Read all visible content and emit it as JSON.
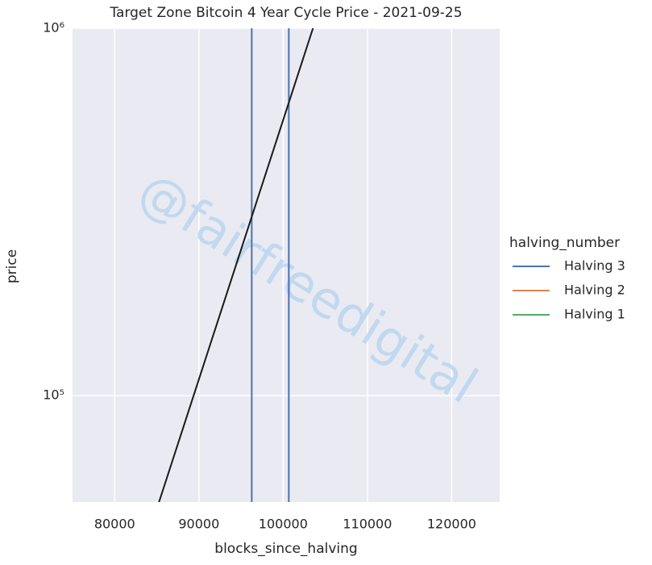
{
  "chart_data": {
    "type": "line",
    "title": "Target Zone Bitcoin 4 Year Cycle Price - 2021-09-25",
    "xlabel": "blocks_since_halving",
    "ylabel": "price",
    "watermark": "@fairfreedigital",
    "legend_title": "halving_number",
    "legend_position": "right",
    "series": [
      {
        "name": "Halving 3",
        "color": "#4c72b0",
        "x": [],
        "values": []
      },
      {
        "name": "Halving 2",
        "color": "#dd8452",
        "x": [],
        "values": []
      },
      {
        "name": "Halving 1",
        "color": "#55a868",
        "x": [],
        "values": []
      }
    ],
    "vlines": [
      {
        "x": 96270,
        "color": "#4c72b0"
      },
      {
        "x": 100670,
        "color": "#4c72b0"
      }
    ],
    "trend_line": {
      "x": [
        85265,
        103540
      ],
      "values": [
        51300,
        1000000
      ],
      "color": "#1a1a1a"
    },
    "xlim": [
      75000,
      125700
    ],
    "ylim": [
      51300,
      1000000
    ],
    "ylog": true,
    "xticks": [
      80000,
      90000,
      100000,
      110000,
      120000
    ],
    "yticks": [
      {
        "value": 100000,
        "label": "10⁵"
      },
      {
        "value": 1000000,
        "label": "10⁶"
      }
    ],
    "grid": true
  }
}
